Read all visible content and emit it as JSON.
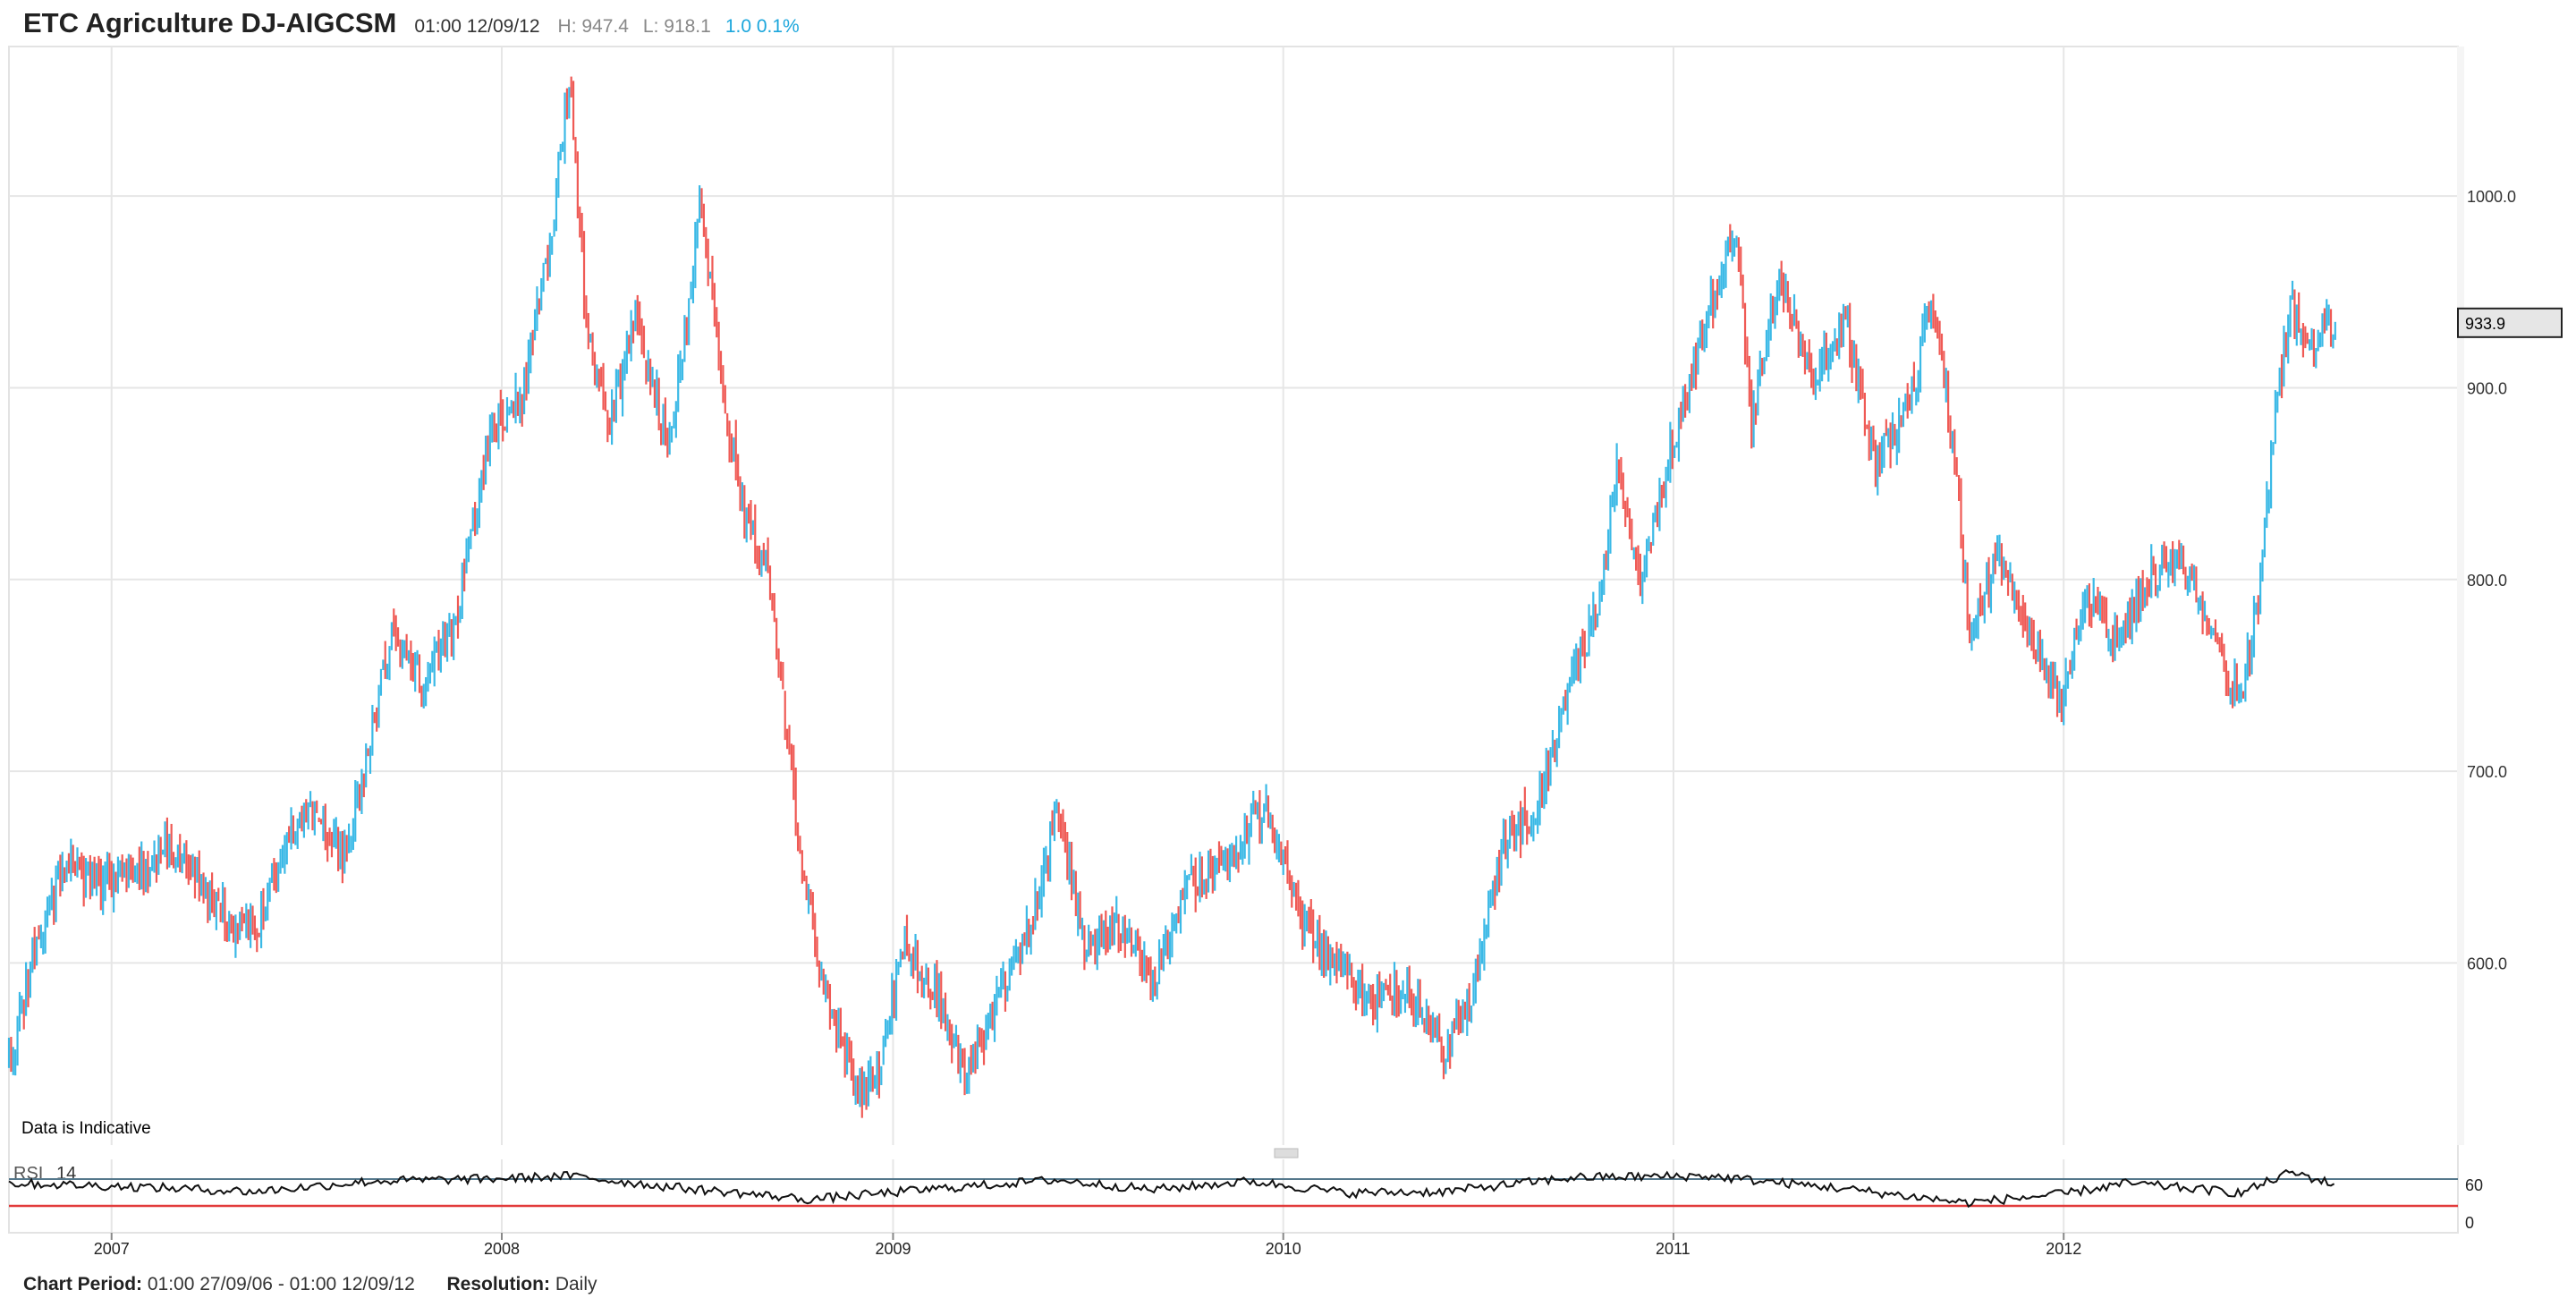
{
  "header": {
    "title": "ETC Agriculture DJ-AIGCSM",
    "timestamp": "01:00 12/09/12",
    "high": "H: 947.4",
    "low": "L: 918.1",
    "change": "1.0 0.1%"
  },
  "notice": "Data is Indicative",
  "indicator": {
    "name": "RSI",
    "period": "14"
  },
  "footer": {
    "period_label": "Chart Period:",
    "period_value": "01:00 27/09/06 - 01:00 12/09/12",
    "resolution_label": "Resolution:",
    "resolution_value": "Daily"
  },
  "chart_data": {
    "type": "ohlc",
    "title": "ETC Agriculture DJ-AIGCSM",
    "x_start": "2006-09-27",
    "x_end": "2012-09-12",
    "x_ticks": [
      "2007",
      "2008",
      "2009",
      "2010",
      "2011",
      "2012"
    ],
    "y_ticks": [
      600.0,
      700.0,
      800.0,
      900.0,
      1000.0
    ],
    "ylim": [
      505,
      1078
    ],
    "last_price": 933.9,
    "grid": true,
    "colors": {
      "up": "#3bb9e6",
      "down": "#ef5a55",
      "grid": "#e6e6e6",
      "rsi_upper": "#55788c",
      "rsi_lower": "#e23b3b"
    },
    "close_series": [
      [
        "2006-09-27",
        548
      ],
      [
        "2006-10-20",
        605
      ],
      [
        "2006-11-20",
        652
      ],
      [
        "2006-12-15",
        642
      ],
      [
        "2007-01-15",
        645
      ],
      [
        "2007-02-20",
        660
      ],
      [
        "2007-03-15",
        648
      ],
      [
        "2007-04-15",
        625
      ],
      [
        "2007-05-15",
        615
      ],
      [
        "2007-06-10",
        660
      ],
      [
        "2007-07-10",
        680
      ],
      [
        "2007-08-05",
        655
      ],
      [
        "2007-08-25",
        700
      ],
      [
        "2007-09-20",
        775
      ],
      [
        "2007-10-20",
        745
      ],
      [
        "2007-11-20",
        780
      ],
      [
        "2007-12-20",
        875
      ],
      [
        "2008-01-20",
        895
      ],
      [
        "2008-02-15",
        975
      ],
      [
        "2008-03-05",
        1065
      ],
      [
        "2008-03-20",
        930
      ],
      [
        "2008-04-10",
        880
      ],
      [
        "2008-05-05",
        935
      ],
      [
        "2008-06-05",
        870
      ],
      [
        "2008-06-25",
        945
      ],
      [
        "2008-07-05",
        995
      ],
      [
        "2008-07-25",
        900
      ],
      [
        "2008-08-15",
        830
      ],
      [
        "2008-09-05",
        810
      ],
      [
        "2008-10-10",
        640
      ],
      [
        "2008-11-01",
        580
      ],
      [
        "2008-12-01",
        530
      ],
      [
        "2008-12-20",
        545
      ],
      [
        "2009-01-10",
        610
      ],
      [
        "2009-02-10",
        585
      ],
      [
        "2009-03-10",
        540
      ],
      [
        "2009-04-10",
        580
      ],
      [
        "2009-05-10",
        620
      ],
      [
        "2009-06-05",
        680
      ],
      [
        "2009-07-01",
        605
      ],
      [
        "2009-08-01",
        620
      ],
      [
        "2009-09-01",
        588
      ],
      [
        "2009-10-05",
        640
      ],
      [
        "2009-11-05",
        655
      ],
      [
        "2009-12-15",
        680
      ],
      [
        "2010-01-20",
        620
      ],
      [
        "2010-02-20",
        600
      ],
      [
        "2010-03-25",
        580
      ],
      [
        "2010-04-25",
        588
      ],
      [
        "2010-06-01",
        555
      ],
      [
        "2010-06-25",
        580
      ],
      [
        "2010-07-25",
        660
      ],
      [
        "2010-08-25",
        680
      ],
      [
        "2010-09-25",
        740
      ],
      [
        "2010-10-25",
        790
      ],
      [
        "2010-11-10",
        860
      ],
      [
        "2010-12-01",
        800
      ],
      [
        "2010-12-30",
        870
      ],
      [
        "2011-02-01",
        935
      ],
      [
        "2011-03-01",
        985
      ],
      [
        "2011-03-15",
        880
      ],
      [
        "2011-04-10",
        960
      ],
      [
        "2011-05-10",
        900
      ],
      [
        "2011-06-10",
        935
      ],
      [
        "2011-07-10",
        860
      ],
      [
        "2011-08-10",
        895
      ],
      [
        "2011-09-01",
        945
      ],
      [
        "2011-09-20",
        870
      ],
      [
        "2011-10-05",
        775
      ],
      [
        "2011-11-01",
        810
      ],
      [
        "2011-12-10",
        760
      ],
      [
        "2011-12-30",
        735
      ],
      [
        "2012-01-20",
        790
      ],
      [
        "2012-02-20",
        770
      ],
      [
        "2012-03-20",
        800
      ],
      [
        "2012-04-20",
        810
      ],
      [
        "2012-05-20",
        775
      ],
      [
        "2012-06-05",
        745
      ],
      [
        "2012-06-15",
        740
      ],
      [
        "2012-07-01",
        790
      ],
      [
        "2012-07-20",
        900
      ],
      [
        "2012-08-01",
        945
      ],
      [
        "2012-08-15",
        920
      ],
      [
        "2012-09-12",
        933.9
      ]
    ],
    "rsi": {
      "name": "RSI",
      "period": 14,
      "levels": [
        60,
        0
      ],
      "series": [
        [
          "2006-09-27",
          55
        ],
        [
          "2007-01-15",
          50
        ],
        [
          "2007-05-15",
          42
        ],
        [
          "2007-09-01",
          58
        ],
        [
          "2008-01-01",
          62
        ],
        [
          "2008-03-05",
          66
        ],
        [
          "2008-06-01",
          50
        ],
        [
          "2008-10-15",
          30
        ],
        [
          "2009-02-01",
          45
        ],
        [
          "2009-06-01",
          60
        ],
        [
          "2009-09-01",
          45
        ],
        [
          "2009-12-01",
          58
        ],
        [
          "2010-03-01",
          40
        ],
        [
          "2010-06-01",
          42
        ],
        [
          "2010-10-01",
          64
        ],
        [
          "2011-02-01",
          66
        ],
        [
          "2011-06-01",
          48
        ],
        [
          "2011-10-01",
          25
        ],
        [
          "2011-12-30",
          38
        ],
        [
          "2012-03-01",
          55
        ],
        [
          "2012-06-15",
          40
        ],
        [
          "2012-08-01",
          72
        ],
        [
          "2012-09-12",
          52
        ]
      ]
    }
  }
}
